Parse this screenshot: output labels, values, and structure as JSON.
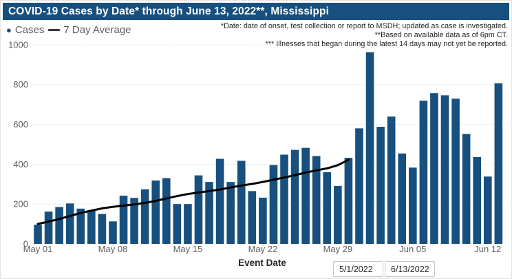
{
  "title": "COVID-19 Cases by Date* through June 13, 2022**, Mississippi",
  "legend": {
    "cases_label": "Cases",
    "avg_label": "7 Day Average"
  },
  "annotations": [
    "*Date: date of onset, test collection or report to MSDH; updated as case is investigated.",
    "**Based on available data as of 6pm CT.",
    "*** Illnesses that began during the latest 14 days may not yet be reported."
  ],
  "xaxis_title": "Event Date",
  "filters": {
    "start_date": "5/1/2022",
    "end_date": "6/13/2022"
  },
  "colors": {
    "title_bar": "#17507E",
    "bar": "#17507E",
    "avg_line": "#000000",
    "axis_text": "#605E5C",
    "gridline": "#c8c8c8"
  },
  "chart_data": {
    "type": "bar",
    "title": "COVID-19 Cases by Date* through June 13, 2022**, Mississippi",
    "xlabel": "Event Date",
    "ylabel": "",
    "ylim": [
      0,
      1000
    ],
    "yticks": [
      0,
      200,
      400,
      600,
      800,
      1000
    ],
    "grid": "horizontal-dotted",
    "legend_position": "top-left",
    "categories": [
      "May 01",
      "May 02",
      "May 03",
      "May 04",
      "May 05",
      "May 06",
      "May 07",
      "May 08",
      "May 09",
      "May 10",
      "May 11",
      "May 12",
      "May 13",
      "May 14",
      "May 15",
      "May 16",
      "May 17",
      "May 18",
      "May 19",
      "May 20",
      "May 21",
      "May 22",
      "May 23",
      "May 24",
      "May 25",
      "May 26",
      "May 27",
      "May 28",
      "May 29",
      "May 30",
      "May 31",
      "Jun 01",
      "Jun 02",
      "Jun 03",
      "Jun 04",
      "Jun 05",
      "Jun 06",
      "Jun 07",
      "Jun 08",
      "Jun 09",
      "Jun 10",
      "Jun 11",
      "Jun 12",
      "Jun 13"
    ],
    "xtick_labels": [
      "May 01",
      "May 08",
      "May 15",
      "May 22",
      "May 29",
      "Jun 05",
      "Jun 12"
    ],
    "xtick_day_indices": [
      0,
      7,
      14,
      21,
      28,
      35,
      42
    ],
    "series": [
      {
        "name": "Cases",
        "type": "bar",
        "values": [
          96,
          162,
          185,
          203,
          177,
          169,
          150,
          113,
          242,
          231,
          274,
          318,
          330,
          200,
          200,
          344,
          311,
          427,
          311,
          417,
          265,
          232,
          396,
          448,
          472,
          482,
          441,
          360,
          291,
          432,
          580,
          962,
          588,
          639,
          454,
          383,
          719,
          757,
          746,
          729,
          552,
          436,
          338,
          806
        ]
      },
      {
        "name": "7 Day Average",
        "type": "line",
        "values": [
          100,
          112,
          125,
          140,
          155,
          167,
          178,
          186,
          192,
          198,
          206,
          216,
          228,
          240,
          250,
          258,
          265,
          273,
          283,
          293,
          301,
          311,
          322,
          333,
          345,
          358,
          369,
          379,
          395,
          422
        ]
      }
    ]
  }
}
